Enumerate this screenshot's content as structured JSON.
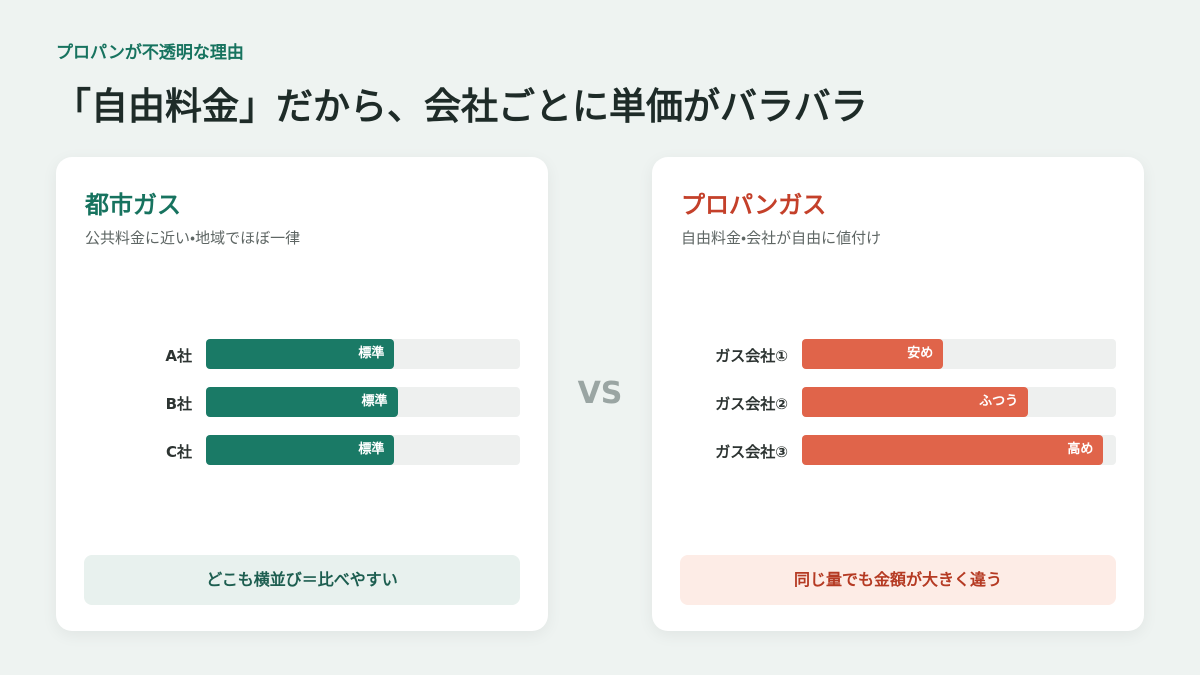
{
  "header": {
    "kicker": "プロパンが不透明な理由",
    "title": "「自由料金」だから、会社ごとに単価がバラバラ"
  },
  "vs": "VS",
  "panels": [
    {
      "title": "都市ガス",
      "subtitle": "公共料金に近い・地域でほぼ一律",
      "color": "#1a7a66",
      "title_color": "#17735f",
      "xlim": [
        0,
        100
      ],
      "rows": [
        {
          "label": "A社",
          "tag": "標準",
          "value": 60
        },
        {
          "label": "B社",
          "tag": "標準",
          "value": 61
        },
        {
          "label": "C社",
          "tag": "標準",
          "value": 60
        }
      ],
      "note": "どこも横並び＝比べやすい",
      "note_bg": "#e8f1ee",
      "note_color": "#1d5e50"
    },
    {
      "title": "プロパンガス",
      "subtitle": "自由料金・会社が自由に値付け",
      "color": "#e0644a",
      "title_color": "#c4402a",
      "xlim": [
        0,
        100
      ],
      "rows": [
        {
          "label": "ガス会社①",
          "tag": "安め",
          "value": 45
        },
        {
          "label": "ガス会社②",
          "tag": "ふつう",
          "value": 72
        },
        {
          "label": "ガス会社③",
          "tag": "高め",
          "value": 96
        }
      ],
      "note": "同じ量でも金額が大きく違う",
      "note_bg": "#fdece6",
      "note_color": "#b53a23"
    }
  ]
}
